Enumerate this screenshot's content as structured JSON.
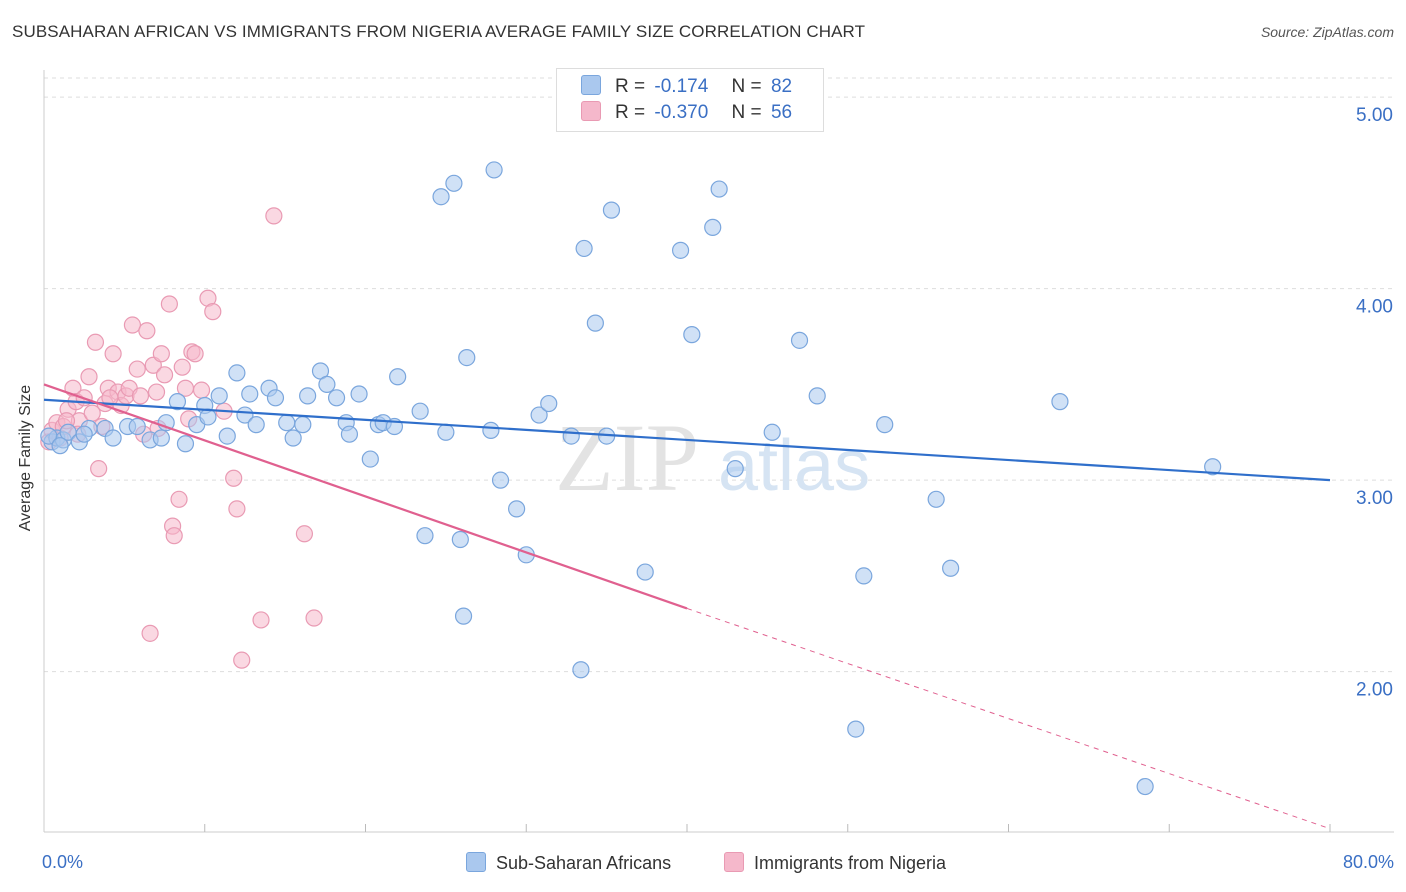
{
  "title": "SUBSAHARAN AFRICAN VS IMMIGRANTS FROM NIGERIA AVERAGE FAMILY SIZE CORRELATION CHART",
  "source": "Source: ZipAtlas.com",
  "watermark": {
    "zip": "ZIP",
    "atlas": "atlas"
  },
  "colors": {
    "blue_fill": "#aac8ee",
    "blue_stroke": "#7aa6dd",
    "blue_line": "#2f6fcb",
    "pink_fill": "#f5b8cb",
    "pink_stroke": "#e99ab3",
    "pink_line": "#e0608f",
    "axis_text": "#3a6fc4",
    "grid": "#dddddd"
  },
  "legend": {
    "rows": [
      {
        "r_label": "R =",
        "r_value": "-0.174",
        "n_label": "N =",
        "n_value": "82",
        "color": "#aac8ee"
      },
      {
        "r_label": "R =",
        "r_value": "-0.370",
        "n_label": "N =",
        "n_value": "56",
        "color": "#f5b8cb"
      }
    ]
  },
  "bottom_legend": [
    {
      "label": "Sub-Saharan Africans",
      "color": "#aac8ee"
    },
    {
      "label": "Immigrants from Nigeria",
      "color": "#f5b8cb"
    }
  ],
  "chart_data": {
    "type": "scatter",
    "ylabel": "Average Family Size",
    "xlabel": "",
    "x_tick_labels": [
      "0.0%",
      "80.0%"
    ],
    "y_tick_labels": [
      "2.00",
      "3.00",
      "4.00",
      "5.00"
    ],
    "y_ticks": [
      2.0,
      3.0,
      4.0,
      5.0
    ],
    "xlim": [
      0,
      80
    ],
    "ylim": [
      1.1,
      5.1
    ],
    "series": [
      {
        "name": "Sub-Saharan Africans",
        "color": "#aac8ee",
        "trend": {
          "x0": 0,
          "y0": 3.42,
          "x1": 80,
          "y1": 3.0
        },
        "points": [
          [
            0.5,
            3.2
          ],
          [
            0.8,
            3.22
          ],
          [
            1.2,
            3.21
          ],
          [
            1.5,
            3.25
          ],
          [
            2.2,
            3.2
          ],
          [
            2.8,
            3.27
          ],
          [
            3.8,
            3.27
          ],
          [
            4.3,
            3.22
          ],
          [
            5.2,
            3.28
          ],
          [
            5.8,
            3.28
          ],
          [
            6.6,
            3.21
          ],
          [
            7.3,
            3.22
          ],
          [
            7.6,
            3.3
          ],
          [
            8.3,
            3.41
          ],
          [
            8.8,
            3.19
          ],
          [
            9.5,
            3.29
          ],
          [
            10.0,
            3.39
          ],
          [
            10.2,
            3.33
          ],
          [
            10.9,
            3.44
          ],
          [
            11.4,
            3.23
          ],
          [
            12.0,
            3.56
          ],
          [
            12.5,
            3.34
          ],
          [
            12.8,
            3.45
          ],
          [
            13.2,
            3.29
          ],
          [
            14.0,
            3.48
          ],
          [
            14.4,
            3.43
          ],
          [
            15.1,
            3.3
          ],
          [
            15.5,
            3.22
          ],
          [
            16.1,
            3.29
          ],
          [
            16.4,
            3.44
          ],
          [
            17.2,
            3.57
          ],
          [
            17.6,
            3.5
          ],
          [
            18.2,
            3.43
          ],
          [
            18.8,
            3.3
          ],
          [
            19.0,
            3.24
          ],
          [
            19.6,
            3.45
          ],
          [
            20.3,
            3.11
          ],
          [
            20.8,
            3.29
          ],
          [
            21.1,
            3.3
          ],
          [
            21.8,
            3.28
          ],
          [
            22.0,
            3.54
          ],
          [
            23.4,
            3.36
          ],
          [
            23.7,
            2.71
          ],
          [
            24.7,
            4.48
          ],
          [
            25.0,
            3.25
          ],
          [
            25.5,
            4.55
          ],
          [
            25.9,
            2.69
          ],
          [
            26.1,
            2.29
          ],
          [
            26.3,
            3.64
          ],
          [
            27.8,
            3.26
          ],
          [
            28.0,
            4.62
          ],
          [
            28.4,
            3.0
          ],
          [
            29.4,
            2.85
          ],
          [
            30.0,
            2.61
          ],
          [
            30.8,
            3.34
          ],
          [
            31.4,
            3.4
          ],
          [
            32.8,
            3.23
          ],
          [
            33.4,
            2.01
          ],
          [
            33.6,
            4.21
          ],
          [
            34.3,
            3.82
          ],
          [
            35.0,
            3.23
          ],
          [
            35.3,
            4.41
          ],
          [
            37.4,
            2.52
          ],
          [
            39.6,
            4.2
          ],
          [
            40.3,
            3.76
          ],
          [
            41.6,
            4.32
          ],
          [
            42.0,
            4.52
          ],
          [
            43.0,
            3.06
          ],
          [
            45.3,
            3.25
          ],
          [
            47.0,
            3.73
          ],
          [
            48.1,
            3.44
          ],
          [
            50.5,
            1.7
          ],
          [
            51.0,
            2.5
          ],
          [
            52.3,
            3.29
          ],
          [
            55.5,
            2.9
          ],
          [
            56.4,
            2.54
          ],
          [
            63.2,
            3.41
          ],
          [
            68.5,
            1.4
          ],
          [
            72.7,
            3.07
          ],
          [
            0.3,
            3.23
          ],
          [
            1.0,
            3.18
          ],
          [
            2.5,
            3.24
          ]
        ]
      },
      {
        "name": "Immigrants from Nigeria",
        "color": "#f5b8cb",
        "trend": {
          "x0": 0,
          "y0": 3.5,
          "x1": 40,
          "y1": 2.33
        },
        "trend_dashed": {
          "x0": 40,
          "y0": 2.33,
          "x1": 80,
          "y1": 1.18
        },
        "points": [
          [
            0.3,
            3.2
          ],
          [
            0.5,
            3.26
          ],
          [
            0.8,
            3.3
          ],
          [
            1.0,
            3.22
          ],
          [
            1.2,
            3.28
          ],
          [
            1.5,
            3.37
          ],
          [
            1.8,
            3.48
          ],
          [
            2.0,
            3.41
          ],
          [
            2.2,
            3.31
          ],
          [
            2.5,
            3.43
          ],
          [
            2.8,
            3.54
          ],
          [
            3.0,
            3.35
          ],
          [
            3.2,
            3.72
          ],
          [
            3.4,
            3.06
          ],
          [
            3.6,
            3.28
          ],
          [
            3.8,
            3.4
          ],
          [
            4.0,
            3.48
          ],
          [
            4.3,
            3.66
          ],
          [
            4.6,
            3.46
          ],
          [
            4.8,
            3.39
          ],
          [
            5.1,
            3.44
          ],
          [
            5.3,
            3.48
          ],
          [
            5.5,
            3.81
          ],
          [
            5.8,
            3.58
          ],
          [
            6.0,
            3.44
          ],
          [
            6.2,
            3.24
          ],
          [
            6.4,
            3.78
          ],
          [
            6.6,
            2.2
          ],
          [
            6.8,
            3.6
          ],
          [
            7.0,
            3.46
          ],
          [
            7.1,
            3.27
          ],
          [
            7.3,
            3.66
          ],
          [
            7.5,
            3.55
          ],
          [
            7.8,
            3.92
          ],
          [
            8.0,
            2.76
          ],
          [
            8.1,
            2.71
          ],
          [
            8.4,
            2.9
          ],
          [
            8.6,
            3.59
          ],
          [
            8.8,
            3.48
          ],
          [
            9.0,
            3.32
          ],
          [
            9.2,
            3.67
          ],
          [
            9.4,
            3.66
          ],
          [
            9.8,
            3.47
          ],
          [
            10.2,
            3.95
          ],
          [
            10.5,
            3.88
          ],
          [
            11.2,
            3.36
          ],
          [
            11.8,
            3.01
          ],
          [
            12.0,
            2.85
          ],
          [
            12.3,
            2.06
          ],
          [
            13.5,
            2.27
          ],
          [
            14.3,
            4.38
          ],
          [
            16.2,
            2.72
          ],
          [
            16.8,
            2.28
          ],
          [
            2.1,
            3.24
          ],
          [
            4.1,
            3.43
          ],
          [
            1.4,
            3.31
          ]
        ]
      }
    ]
  }
}
